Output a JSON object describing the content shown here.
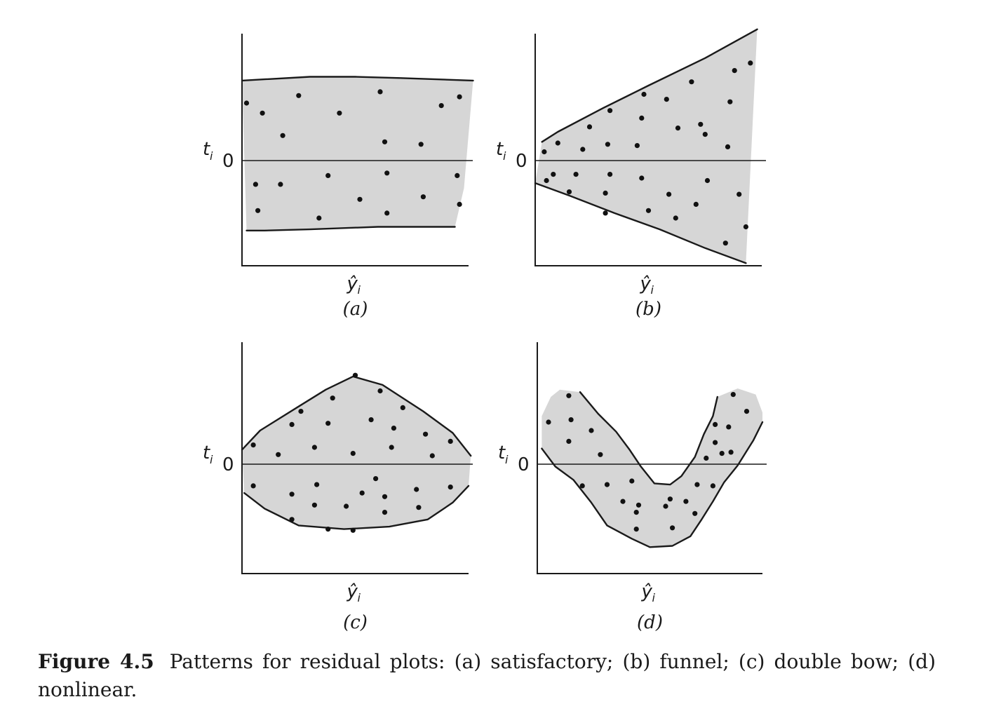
{
  "chart_data": [
    {
      "type": "scatter",
      "panel_label": "(a)",
      "ylabel": "t",
      "ylabel_sub": "i",
      "xlabel": "ŷ",
      "xlabel_sub": "i",
      "zero_label": "0",
      "xlim": [
        0,
        10
      ],
      "ylim": [
        -10,
        10
      ],
      "band": {
        "upper": [
          [
            0,
            6.4
          ],
          [
            1,
            6.5
          ],
          [
            3,
            6.7
          ],
          [
            5,
            6.7
          ],
          [
            7,
            6.6
          ],
          [
            10.2,
            6.4
          ]
        ],
        "lower": [
          [
            0.2,
            -5.6
          ],
          [
            1,
            -5.6
          ],
          [
            3,
            -5.5
          ],
          [
            6,
            -5.3
          ],
          [
            9.4,
            -5.3
          ]
        ],
        "right": [
          [
            10.2,
            6.4
          ],
          [
            9.8,
            -2.2
          ],
          [
            9.4,
            -5.3
          ]
        ],
        "outline_upper": true,
        "outline_lower": true
      },
      "points": [
        [
          0.2,
          4.6
        ],
        [
          0.9,
          3.8
        ],
        [
          2.5,
          5.2
        ],
        [
          4.3,
          3.8
        ],
        [
          6.1,
          5.5
        ],
        [
          8.8,
          4.4
        ],
        [
          9.6,
          5.1
        ],
        [
          1.8,
          2.0
        ],
        [
          6.3,
          1.5
        ],
        [
          7.9,
          1.3
        ],
        [
          0.6,
          -1.9
        ],
        [
          1.7,
          -1.9
        ],
        [
          3.8,
          -1.2
        ],
        [
          6.4,
          -1.0
        ],
        [
          9.5,
          -1.2
        ],
        [
          5.2,
          -3.1
        ],
        [
          8.0,
          -2.9
        ],
        [
          0.7,
          -4.0
        ],
        [
          3.4,
          -4.6
        ],
        [
          6.4,
          -4.2
        ],
        [
          9.6,
          -3.5
        ]
      ]
    },
    {
      "type": "scatter",
      "panel_label": "(b)",
      "ylabel": "t",
      "ylabel_sub": "i",
      "xlabel": "ŷ",
      "xlabel_sub": "i",
      "zero_label": "0",
      "xlim": [
        0,
        10
      ],
      "ylim": [
        -10,
        10
      ],
      "band": {
        "upper": [
          [
            0.3,
            1.5
          ],
          [
            1.0,
            2.3
          ],
          [
            3.0,
            4.2
          ],
          [
            5.0,
            6.0
          ],
          [
            7.5,
            8.2
          ],
          [
            9.8,
            10.5
          ]
        ],
        "lower": [
          [
            0,
            -1.8
          ],
          [
            1.5,
            -2.8
          ],
          [
            3.5,
            -4.2
          ],
          [
            5.5,
            -5.5
          ],
          [
            7.5,
            -7.0
          ],
          [
            9.3,
            -8.2
          ]
        ],
        "right": [
          [
            9.8,
            10.5
          ],
          [
            9.3,
            -8.2
          ]
        ],
        "outline_upper": true,
        "outline_lower": true
      },
      "points": [
        [
          0.4,
          0.7
        ],
        [
          1.0,
          1.4
        ],
        [
          2.4,
          2.7
        ],
        [
          3.3,
          4.0
        ],
        [
          4.8,
          5.3
        ],
        [
          5.8,
          4.9
        ],
        [
          6.9,
          6.3
        ],
        [
          8.8,
          7.2
        ],
        [
          9.5,
          7.8
        ],
        [
          4.7,
          3.4
        ],
        [
          6.3,
          2.6
        ],
        [
          7.5,
          2.1
        ],
        [
          2.1,
          0.9
        ],
        [
          3.2,
          1.3
        ],
        [
          4.5,
          1.2
        ],
        [
          7.3,
          2.9
        ],
        [
          8.6,
          4.7
        ],
        [
          8.5,
          1.1
        ],
        [
          0.5,
          -1.6
        ],
        [
          0.8,
          -1.1
        ],
        [
          1.8,
          -1.1
        ],
        [
          3.3,
          -1.1
        ],
        [
          4.7,
          -1.4
        ],
        [
          7.6,
          -1.6
        ],
        [
          1.5,
          -2.5
        ],
        [
          3.1,
          -2.6
        ],
        [
          5.9,
          -2.7
        ],
        [
          9.0,
          -2.7
        ],
        [
          7.1,
          -3.5
        ],
        [
          5.0,
          -4.0
        ],
        [
          3.1,
          -4.2
        ],
        [
          6.2,
          -4.6
        ],
        [
          8.4,
          -6.6
        ],
        [
          9.3,
          -5.3
        ]
      ]
    },
    {
      "type": "scatter",
      "panel_label": "(c)",
      "ylabel": "t",
      "ylabel_sub": "i",
      "xlabel": "ŷ",
      "xlabel_sub": "i",
      "zero_label": "0",
      "xlim": [
        0,
        10
      ],
      "ylim": [
        -10,
        10
      ],
      "band": {
        "upper": [
          [
            0,
            1.2
          ],
          [
            0.8,
            2.8
          ],
          [
            2.5,
            4.8
          ],
          [
            3.7,
            6.2
          ],
          [
            4.9,
            7.3
          ],
          [
            6.2,
            6.6
          ],
          [
            8.0,
            4.4
          ],
          [
            9.3,
            2.6
          ],
          [
            10.1,
            0.7
          ]
        ],
        "lower": [
          [
            0.1,
            -2.4
          ],
          [
            1.0,
            -3.7
          ],
          [
            2.5,
            -5.1
          ],
          [
            4.5,
            -5.4
          ],
          [
            6.5,
            -5.2
          ],
          [
            8.2,
            -4.6
          ],
          [
            9.3,
            -3.2
          ],
          [
            10.0,
            -1.8
          ]
        ],
        "right": [
          [
            10.1,
            0.7
          ],
          [
            10.0,
            -1.8
          ]
        ],
        "outline_upper": true,
        "outline_lower": true
      },
      "points": [
        [
          5.0,
          7.4
        ],
        [
          6.1,
          6.1
        ],
        [
          4.0,
          5.5
        ],
        [
          7.1,
          4.7
        ],
        [
          2.6,
          4.4
        ],
        [
          2.2,
          3.3
        ],
        [
          3.8,
          3.4
        ],
        [
          5.7,
          3.7
        ],
        [
          6.7,
          3.0
        ],
        [
          8.1,
          2.5
        ],
        [
          9.2,
          1.9
        ],
        [
          0.5,
          1.6
        ],
        [
          1.6,
          0.8
        ],
        [
          3.2,
          1.4
        ],
        [
          4.9,
          0.9
        ],
        [
          6.6,
          1.4
        ],
        [
          8.4,
          0.7
        ],
        [
          0.5,
          -1.8
        ],
        [
          2.2,
          -2.5
        ],
        [
          3.3,
          -1.7
        ],
        [
          5.9,
          -1.2
        ],
        [
          5.3,
          -2.4
        ],
        [
          6.3,
          -2.7
        ],
        [
          7.7,
          -2.1
        ],
        [
          9.2,
          -1.9
        ],
        [
          3.2,
          -3.4
        ],
        [
          4.6,
          -3.5
        ],
        [
          6.3,
          -4.0
        ],
        [
          7.8,
          -3.6
        ],
        [
          2.2,
          -4.6
        ],
        [
          3.8,
          -5.4
        ],
        [
          4.9,
          -5.5
        ]
      ]
    },
    {
      "type": "scatter",
      "panel_label": "(d)",
      "ylabel": "t",
      "ylabel_sub": "i",
      "xlabel": "ŷ",
      "xlabel_sub": "i",
      "zero_label": "0",
      "xlim": [
        0,
        10
      ],
      "ylim": [
        -10,
        10
      ],
      "band": {
        "upper": [
          [
            0.2,
            4.0
          ],
          [
            0.6,
            5.6
          ],
          [
            1.0,
            6.2
          ],
          [
            1.9,
            6.0
          ],
          [
            2.7,
            4.2
          ],
          [
            3.5,
            2.7
          ],
          [
            4.1,
            1.2
          ],
          [
            4.6,
            -0.2
          ],
          [
            5.2,
            -1.6
          ],
          [
            5.9,
            -1.7
          ],
          [
            6.4,
            -1.0
          ],
          [
            7.0,
            0.6
          ],
          [
            7.4,
            2.5
          ],
          [
            7.8,
            4.0
          ],
          [
            8.0,
            5.6
          ],
          [
            8.9,
            6.3
          ],
          [
            9.7,
            5.8
          ],
          [
            10.0,
            4.3
          ]
        ],
        "lower": [
          [
            0.2,
            1.3
          ],
          [
            0.8,
            -0.2
          ],
          [
            1.6,
            -1.3
          ],
          [
            2.4,
            -3.2
          ],
          [
            3.1,
            -5.1
          ],
          [
            4.2,
            -6.2
          ],
          [
            5.0,
            -6.9
          ],
          [
            6.0,
            -6.8
          ],
          [
            6.8,
            -6.0
          ],
          [
            7.3,
            -4.6
          ],
          [
            7.8,
            -3.1
          ],
          [
            8.3,
            -1.5
          ],
          [
            8.9,
            -0.1
          ],
          [
            9.6,
            2.0
          ],
          [
            10.0,
            3.5
          ]
        ],
        "right": [
          [
            10.0,
            4.3
          ],
          [
            10.0,
            3.5
          ]
        ],
        "outline_upper": false,
        "outline_lower": true,
        "outline_top_mid": [
          [
            1.9,
            6.0
          ],
          [
            2.7,
            4.2
          ],
          [
            3.5,
            2.7
          ],
          [
            4.1,
            1.2
          ],
          [
            4.6,
            -0.2
          ],
          [
            5.2,
            -1.6
          ],
          [
            5.9,
            -1.7
          ],
          [
            6.4,
            -1.0
          ],
          [
            7.0,
            0.6
          ],
          [
            7.4,
            2.5
          ],
          [
            7.8,
            4.0
          ],
          [
            8.0,
            5.6
          ]
        ]
      },
      "points": [
        [
          1.4,
          5.7
        ],
        [
          0.5,
          3.5
        ],
        [
          1.5,
          3.7
        ],
        [
          2.4,
          2.8
        ],
        [
          1.4,
          1.9
        ],
        [
          2.8,
          0.8
        ],
        [
          8.7,
          5.8
        ],
        [
          9.3,
          4.4
        ],
        [
          7.9,
          3.3
        ],
        [
          8.5,
          3.1
        ],
        [
          7.9,
          1.8
        ],
        [
          8.2,
          0.9
        ],
        [
          8.6,
          1.0
        ],
        [
          7.5,
          0.5
        ],
        [
          2.0,
          -1.8
        ],
        [
          3.1,
          -1.7
        ],
        [
          4.2,
          -1.4
        ],
        [
          7.1,
          -1.7
        ],
        [
          7.8,
          -1.8
        ],
        [
          5.9,
          -2.9
        ],
        [
          4.5,
          -3.4
        ],
        [
          3.8,
          -3.1
        ],
        [
          4.4,
          -4.0
        ],
        [
          5.7,
          -3.5
        ],
        [
          6.6,
          -3.1
        ],
        [
          7.0,
          -4.1
        ],
        [
          4.4,
          -5.4
        ],
        [
          6.0,
          -5.3
        ]
      ]
    }
  ],
  "caption": {
    "label": "Figure 4.5",
    "text": "Patterns for residual plots: (a) satisfactory; (b) funnel; (c) double bow; (d) nonlinear."
  }
}
